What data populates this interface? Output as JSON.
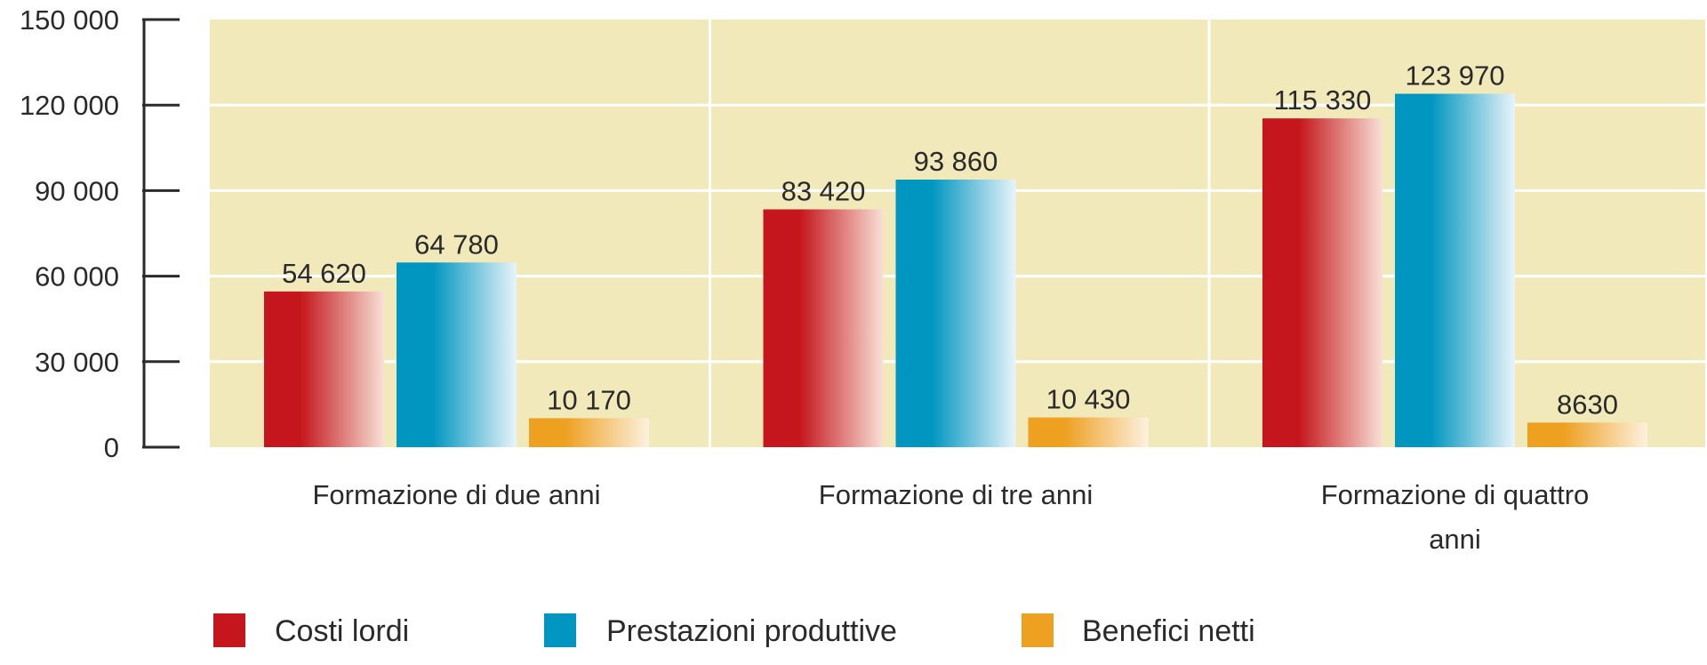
{
  "chart_data": {
    "type": "bar",
    "title": "",
    "xlabel": "",
    "ylabel": "",
    "ylim": [
      0,
      150000
    ],
    "yticks": [
      0,
      30000,
      60000,
      90000,
      120000,
      150000
    ],
    "ytick_labels": [
      "0",
      "30 000",
      "60 000",
      "90 000",
      "120 000",
      "150 000"
    ],
    "grid": true,
    "legend_position": "bottom",
    "categories": [
      [
        "Formazione di due anni"
      ],
      [
        "Formazione di tre anni"
      ],
      [
        "Formazione di quattro",
        "anni"
      ]
    ],
    "series": [
      {
        "name": "Costi lordi",
        "color": "#c4161c",
        "values": [
          54620,
          83420,
          115330
        ],
        "labels": [
          "54 620",
          "83 420",
          "115 330"
        ]
      },
      {
        "name": "Prestazioni produttive",
        "color": "#0096c0",
        "values": [
          64780,
          93860,
          123970
        ],
        "labels": [
          "64 780",
          "93 860",
          "123 970"
        ]
      },
      {
        "name": "Benefici netti",
        "color": "#eea020",
        "values": [
          10170,
          10430,
          8630
        ],
        "labels": [
          "10 170",
          "10 430",
          "8630"
        ]
      }
    ],
    "colors": {
      "plot_background": "#f2e9bb",
      "gridline": "#ffffff",
      "axis": "#2a2a2a"
    }
  }
}
